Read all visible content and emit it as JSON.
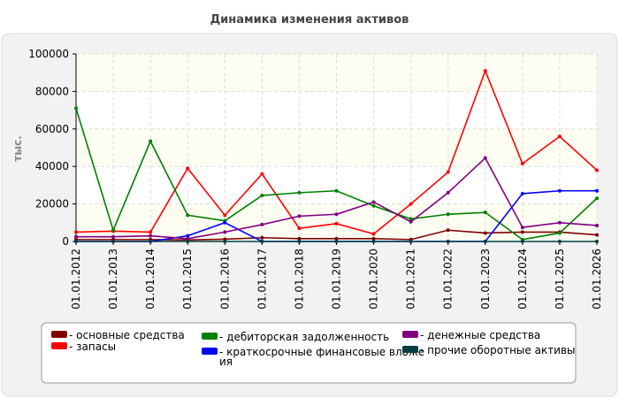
{
  "chart_data": {
    "type": "line",
    "title": "Динамика изменения активов",
    "ylabel": "тыс.",
    "xlabel": "",
    "ylim": [
      0,
      100000
    ],
    "yticks": [
      "100000",
      "80000",
      "60000",
      "40000",
      "20000",
      "0"
    ],
    "grid": true,
    "legend_position": "bottom",
    "categories": [
      "01.01.2012",
      "01.01.2013",
      "01.01.2014",
      "01.01.2015",
      "01.01.2016",
      "01.01.2017",
      "01.01.2018",
      "01.01.2019",
      "01.01.2020",
      "01.01.2021",
      "01.01.2022",
      "01.01.2023",
      "01.01.2024",
      "01.01.2025",
      "01.01.2026"
    ],
    "series": [
      {
        "name": "- основные средства",
        "color": "#800000",
        "values": [
          1000,
          1000,
          1000,
          800,
          1200,
          2000,
          1500,
          1500,
          1500,
          1000,
          6000,
          4500,
          5000,
          5000,
          3500
        ]
      },
      {
        "name": "- запасы",
        "color": "#ff0000",
        "values": [
          5000,
          5500,
          5000,
          39000,
          14000,
          36000,
          7000,
          9500,
          4000,
          20000,
          37000,
          91000,
          41500,
          56000,
          38000
        ]
      },
      {
        "name": "- дебиторская задолженность",
        "color": "#008000",
        "values": [
          71000,
          6000,
          53500,
          14000,
          11000,
          24500,
          26000,
          27000,
          19000,
          12000,
          14500,
          15500,
          1000,
          4500,
          23000
        ]
      },
      {
        "name": "- краткосрочные финансовые вложения",
        "color": "#0000ff",
        "values": [
          0,
          0,
          0,
          3000,
          10000,
          0,
          0,
          0,
          0,
          0,
          0,
          0,
          25500,
          27000,
          27000
        ]
      },
      {
        "name": "- денежные средства",
        "color": "#800080",
        "values": [
          2500,
          2500,
          3000,
          1500,
          5000,
          9000,
          13500,
          14500,
          21000,
          10500,
          26000,
          44500,
          7500,
          10000,
          8500
        ]
      },
      {
        "name": "- прочие оборотные активы",
        "color": "#004040",
        "values": [
          0,
          0,
          0,
          0,
          0,
          0,
          0,
          0,
          0,
          0,
          0,
          0,
          0,
          0,
          0
        ]
      }
    ]
  }
}
